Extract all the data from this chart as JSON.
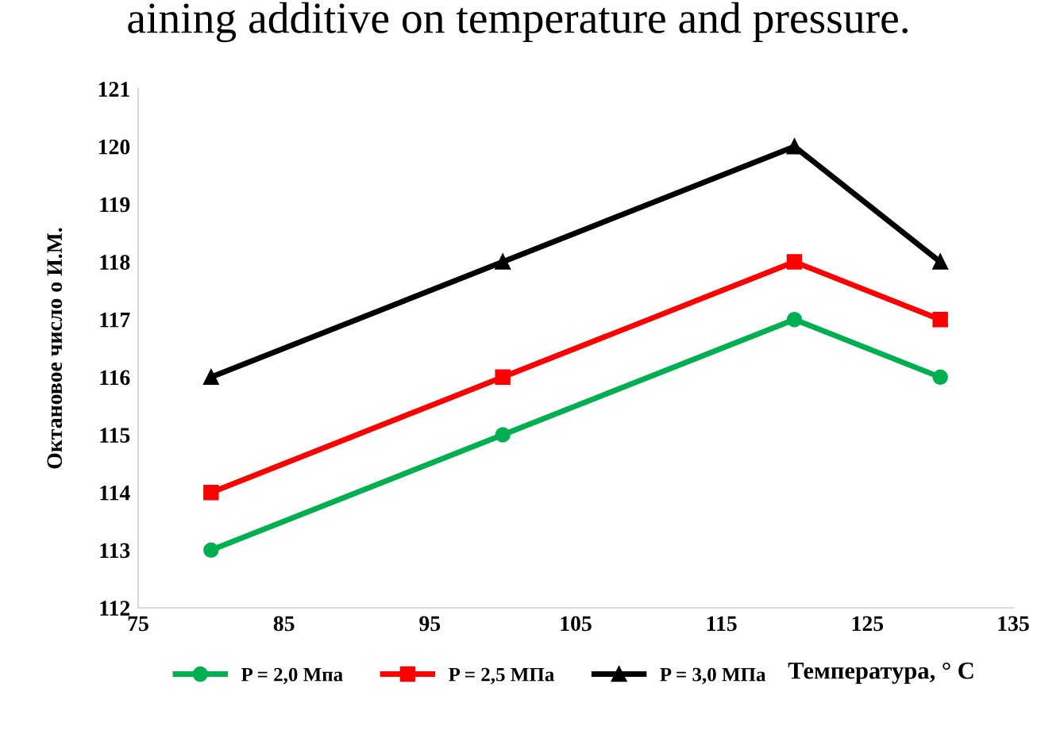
{
  "chart_data": {
    "type": "line",
    "xlabel": "Температура, ° С",
    "ylabel": "Октановое число о И.М.",
    "annotations": [
      "aining additive on temperature and pressure."
    ],
    "x": [
      80,
      100,
      120,
      130
    ],
    "series": [
      {
        "name": "P = 2,0 Мпа",
        "color": "#00b050",
        "marker": "circle",
        "values": [
          113,
          115,
          117,
          116
        ]
      },
      {
        "name": "P = 2,5 МПа",
        "color": "#ff0000",
        "marker": "square",
        "values": [
          114,
          116,
          118,
          117
        ]
      },
      {
        "name": "P = 3,0 МПа",
        "color": "#000000",
        "marker": "triangle",
        "values": [
          116,
          118,
          120,
          118
        ]
      }
    ],
    "xlim": [
      75,
      135
    ],
    "xticks": [
      75,
      85,
      95,
      105,
      115,
      125,
      135
    ],
    "ylim": [
      112,
      121
    ],
    "yticks": [
      112,
      113,
      114,
      115,
      116,
      117,
      118,
      119,
      120,
      121
    ],
    "grid": false,
    "legend": "bottom",
    "line_style": "solid"
  }
}
